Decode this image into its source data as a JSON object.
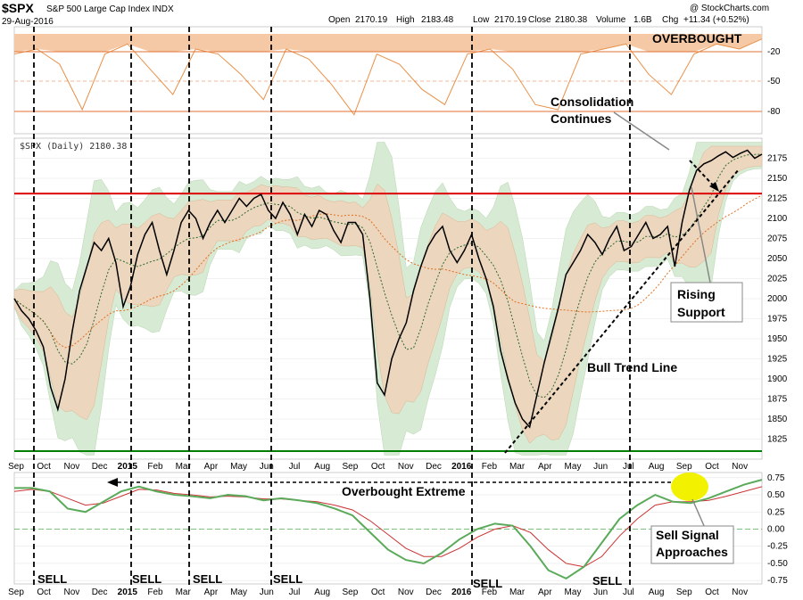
{
  "header": {
    "symbol": "$SPX",
    "name": "S&P 500 Large Cap Index INDX",
    "date": "29-Aug-2016",
    "open_label": "Open",
    "open": "2170.19",
    "high_label": "High",
    "high": "2183.48",
    "low_label": "Low",
    "low": "2170.19",
    "close_label": "Close",
    "close": "2180.38",
    "volume_label": "Volume",
    "volume": "1.6B",
    "chg_label": "Chg",
    "chg": "+11.34 (+0.52%)",
    "watermark": "@ StockCharts.com",
    "legend": "$SPX (Daily) 2180.38"
  },
  "colors": {
    "price": "#000000",
    "resistance": "#dd0000",
    "support": "#008000",
    "indicator_fill": "#f5b98a",
    "band_outer": "#cfe6cc",
    "band_inner": "#e8cfb3",
    "ma_short": "#2e6b2e",
    "ma_long": "#e0701d",
    "momentum_fast": "#5aaa5a",
    "momentum_slow": "#cc3333",
    "highlight": "#f2f200"
  },
  "annotations": {
    "overbought": "OVERBOUGHT",
    "consolidation_line1": "Consolidation",
    "consolidation_line2": "Continues",
    "rising_line1": "Rising",
    "rising_line2": "Support",
    "bull_trend": "Bull Trend Line",
    "overbought_extreme": "Overbought Extreme",
    "sell_signal_line1": "Sell Signal",
    "sell_signal_line2": "Approaches",
    "sell_labels": [
      "SELL",
      "SELL",
      "SELL",
      "SELL",
      "SELL",
      "SELL"
    ]
  },
  "chart_data": [
    {
      "type": "line",
      "panel": "top-indicator",
      "title": "",
      "y_ticks": [
        "-20",
        "-50",
        "-80"
      ],
      "series": [
        {
          "values": [
            -20,
            -15,
            -30,
            -75,
            -20,
            -10,
            -35,
            -60,
            -15,
            -20,
            -40,
            -65,
            -15,
            -25,
            -50,
            -80,
            -20,
            -30,
            -55,
            -70,
            -20,
            -15,
            -35,
            -70,
            -75,
            -20,
            -15,
            -10,
            -40,
            -60,
            -20,
            -10,
            -15,
            -5
          ]
        }
      ]
    },
    {
      "type": "line",
      "panel": "main-price",
      "title": "",
      "ylim": [
        1800,
        2200
      ],
      "y_ticks": [
        "2175",
        "2150",
        "2125",
        "2100",
        "2075",
        "2050",
        "2025",
        "2000",
        "1975",
        "1950",
        "1925",
        "1900",
        "1875",
        "1850",
        "1825"
      ],
      "x_ticks": [
        "Sep",
        "Oct",
        "Nov",
        "Dec",
        "2015",
        "Feb",
        "Mar",
        "Apr",
        "May",
        "Jun",
        "Jul",
        "Aug",
        "Sep",
        "Oct",
        "Nov",
        "Dec",
        "2016",
        "Feb",
        "Mar",
        "Apr",
        "May",
        "Jun",
        "Jul",
        "Aug",
        "Sep",
        "Oct",
        "Nov"
      ],
      "horizontal_lines": {
        "resistance": 2131,
        "support": 1810
      },
      "series": [
        {
          "name": "$SPX",
          "values": [
            2000,
            1985,
            1975,
            1960,
            1940,
            1890,
            1862,
            1900,
            1960,
            2010,
            2040,
            2070,
            2060,
            2075,
            2045,
            1990,
            2015,
            2055,
            2080,
            2095,
            2060,
            2030,
            2060,
            2095,
            2110,
            2100,
            2075,
            2095,
            2110,
            2095,
            2110,
            2125,
            2115,
            2125,
            2130,
            2110,
            2100,
            2120,
            2105,
            2080,
            2105,
            2090,
            2110,
            2105,
            2085,
            2070,
            2095,
            2095,
            2080,
            2000,
            1895,
            1880,
            1925,
            1950,
            1970,
            2010,
            2040,
            2065,
            2080,
            2090,
            2060,
            2045,
            2060,
            2080,
            2050,
            2025,
            1990,
            1935,
            1900,
            1870,
            1850,
            1840,
            1880,
            1920,
            1955,
            1990,
            2030,
            2045,
            2060,
            2080,
            2070,
            2055,
            2075,
            2090,
            2060,
            2065,
            2080,
            2095,
            2075,
            2080,
            2090,
            2040,
            2095,
            2135,
            2160,
            2168,
            2172,
            2178,
            2183,
            2176,
            2181,
            2185,
            2175,
            2180
          ]
        }
      ]
    },
    {
      "type": "line",
      "panel": "bottom-momentum",
      "title": "",
      "ylim": [
        -0.8,
        0.8
      ],
      "y_ticks": [
        "0.75",
        "0.50",
        "0.25",
        "0.00",
        "-0.25",
        "-0.50",
        "-0.75"
      ],
      "x_ticks": [
        "Sep",
        "Oct",
        "Nov",
        "Dec",
        "2015",
        "Feb",
        "Mar",
        "Apr",
        "May",
        "Jun",
        "Jul",
        "Aug",
        "Sep",
        "Oct",
        "Nov",
        "Dec",
        "2016",
        "Feb",
        "Mar",
        "Apr",
        "May",
        "Jun",
        "Jul",
        "Aug",
        "Sep",
        "Oct",
        "Nov"
      ],
      "series": [
        {
          "values": [
            0.6,
            0.6,
            0.55,
            0.3,
            0.25,
            0.4,
            0.55,
            0.62,
            0.55,
            0.5,
            0.48,
            0.45,
            0.5,
            0.48,
            0.42,
            0.45,
            0.42,
            0.38,
            0.3,
            0.2,
            -0.05,
            -0.3,
            -0.45,
            -0.5,
            -0.35,
            -0.15,
            0.0,
            0.08,
            0.05,
            -0.25,
            -0.6,
            -0.72,
            -0.55,
            -0.2,
            0.15,
            0.35,
            0.5,
            0.4,
            0.38,
            0.45,
            0.55,
            0.65,
            0.72
          ]
        },
        {
          "values": [
            0.55,
            0.58,
            0.55,
            0.45,
            0.35,
            0.38,
            0.48,
            0.58,
            0.57,
            0.52,
            0.5,
            0.47,
            0.48,
            0.47,
            0.44,
            0.44,
            0.42,
            0.4,
            0.35,
            0.28,
            0.12,
            -0.08,
            -0.28,
            -0.4,
            -0.4,
            -0.28,
            -0.12,
            0.0,
            0.05,
            -0.05,
            -0.3,
            -0.5,
            -0.55,
            -0.4,
            -0.1,
            0.15,
            0.35,
            0.4,
            0.4,
            0.42,
            0.48,
            0.55,
            0.62
          ]
        }
      ]
    }
  ]
}
